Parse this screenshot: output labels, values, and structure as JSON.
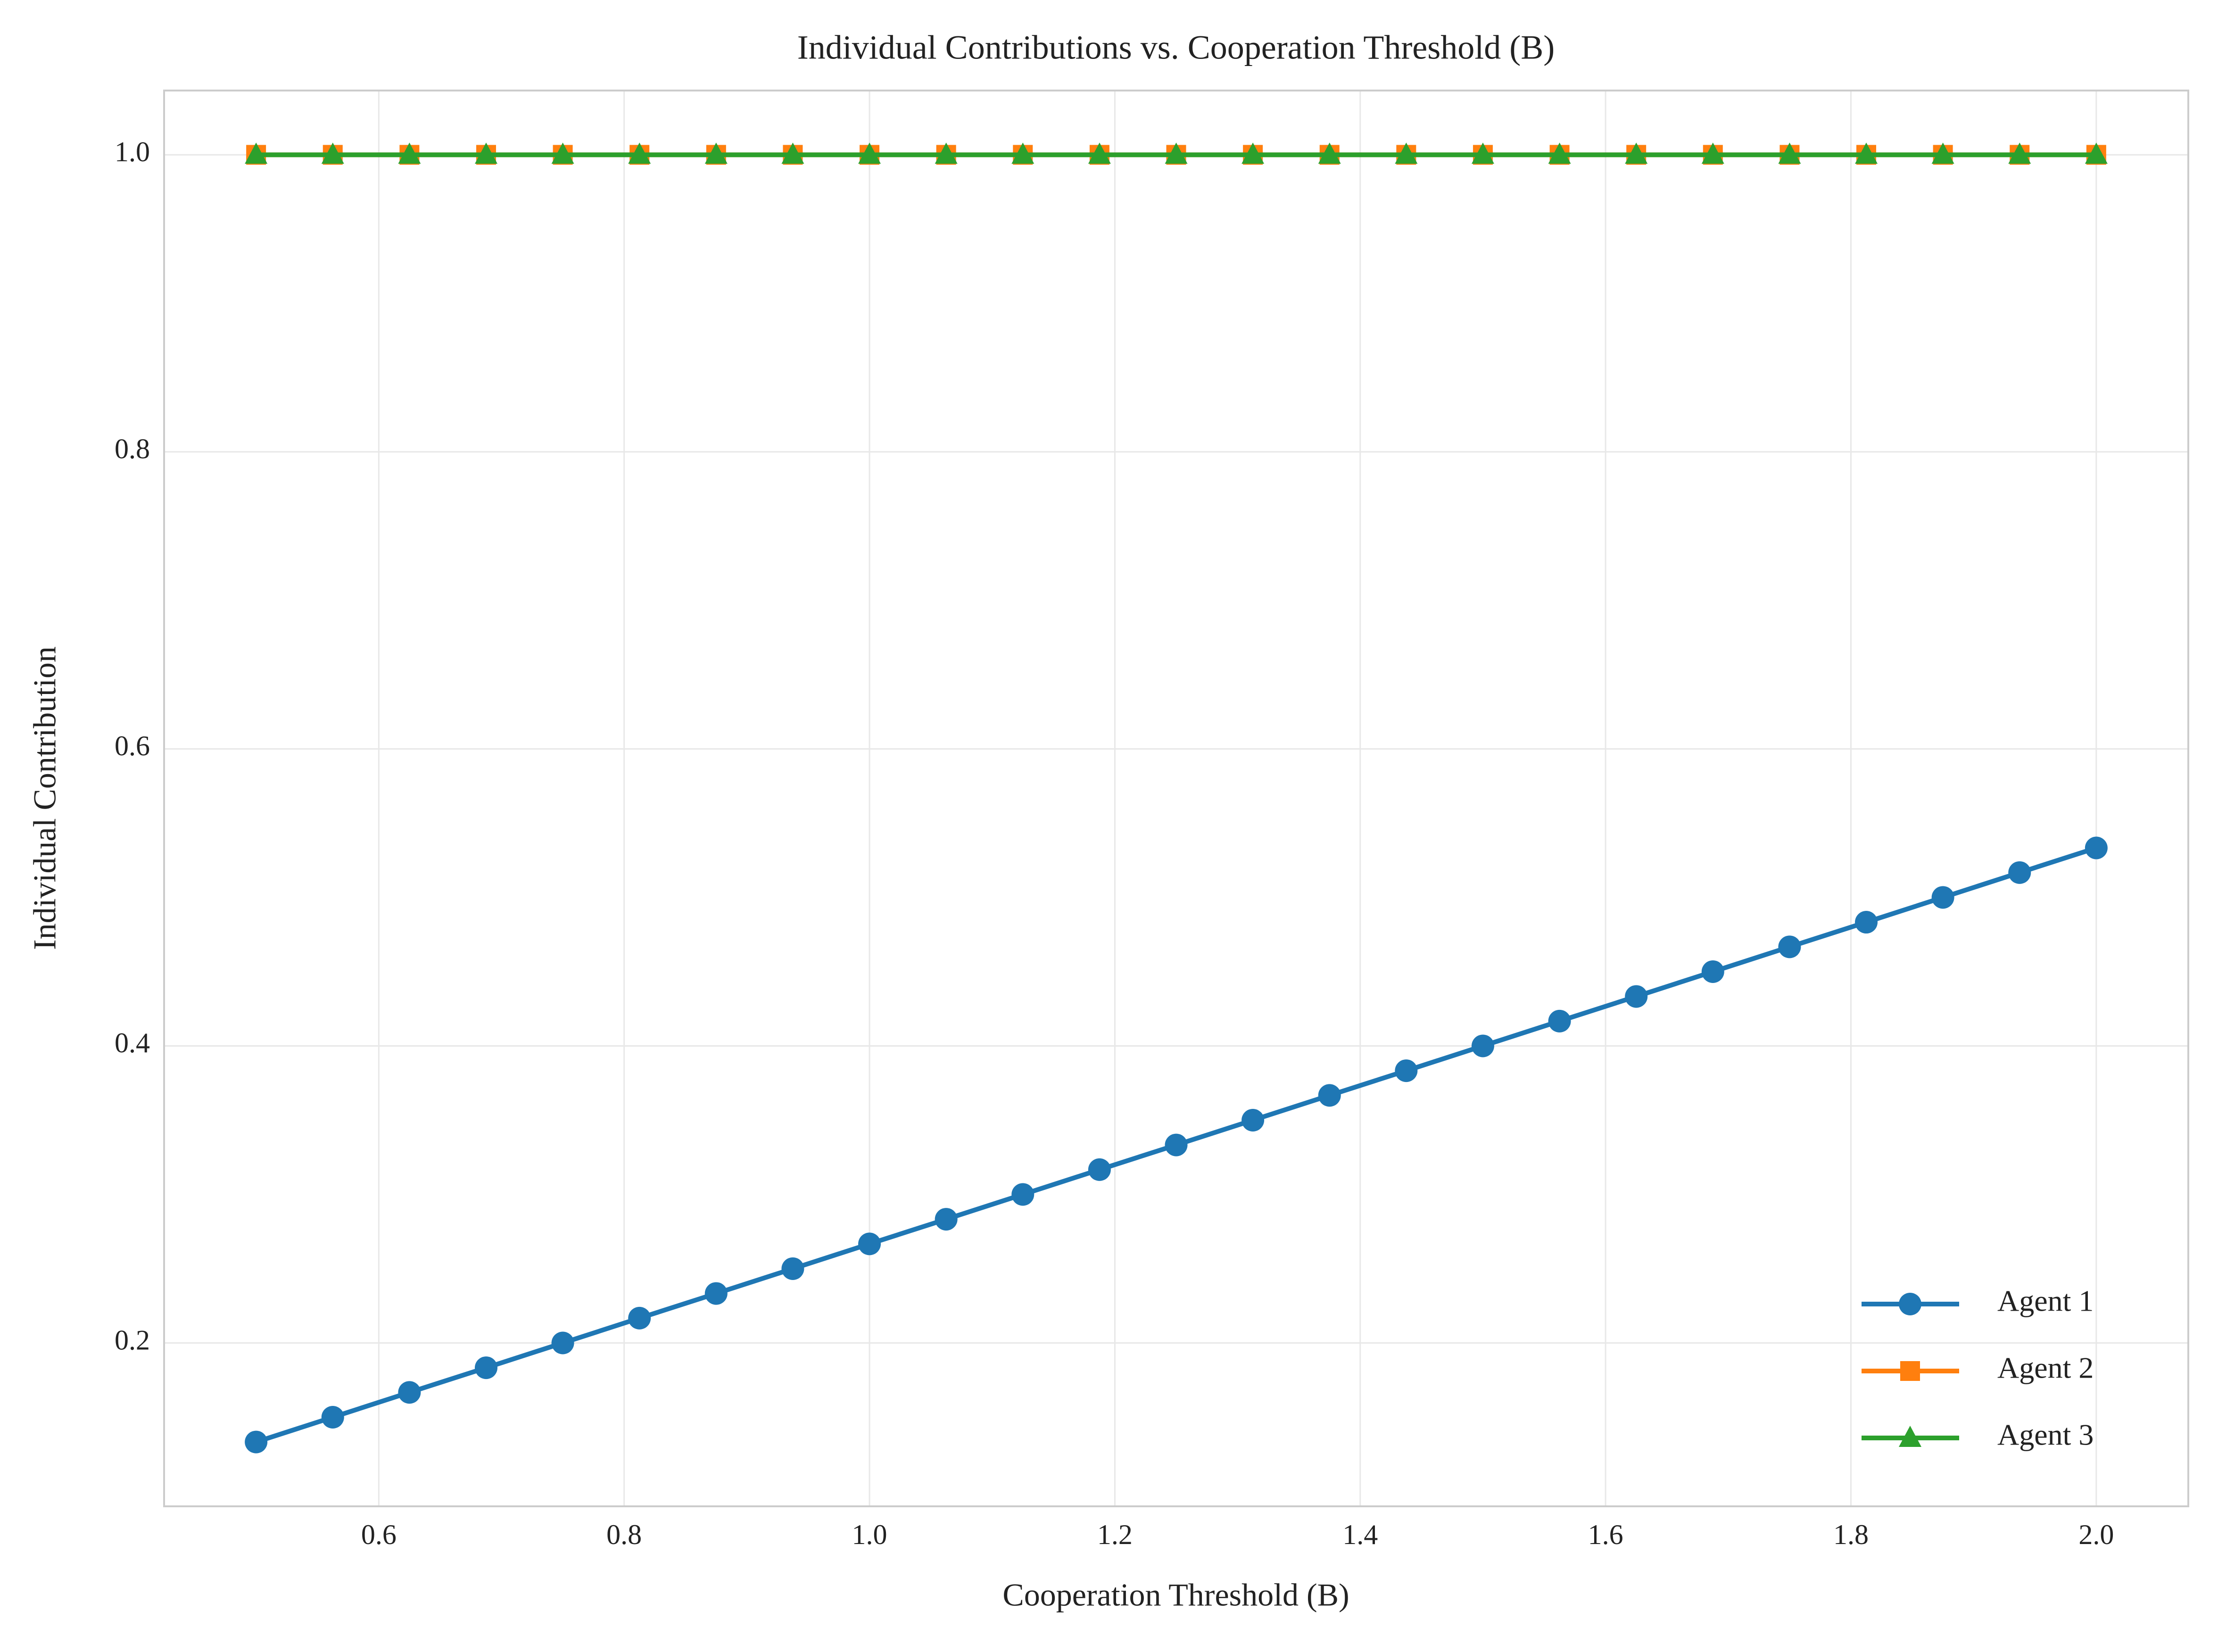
{
  "chart_data": {
    "type": "line",
    "title": "Individual Contributions vs. Cooperation Threshold (B)",
    "x_label": "Cooperation Threshold (B)",
    "y_label": "Individual Contribution",
    "x": [
      0.5,
      0.5625,
      0.625,
      0.6875,
      0.75,
      0.8125,
      0.875,
      0.9375,
      1.0,
      1.0625,
      1.125,
      1.1875,
      1.25,
      1.3125,
      1.375,
      1.4375,
      1.5,
      1.5625,
      1.625,
      1.6875,
      1.75,
      1.8125,
      1.875,
      1.9375,
      2.0
    ],
    "series": [
      {
        "name": "Agent 1",
        "color": "#1f77b4",
        "marker": "circle",
        "values": [
          0.1333,
          0.15,
          0.1667,
          0.1833,
          0.2,
          0.2167,
          0.2333,
          0.25,
          0.2667,
          0.2833,
          0.3,
          0.3167,
          0.3333,
          0.35,
          0.3667,
          0.3833,
          0.4,
          0.4167,
          0.4333,
          0.45,
          0.4667,
          0.4833,
          0.5,
          0.5167,
          0.5333
        ]
      },
      {
        "name": "Agent 2",
        "color": "#ff7f0e",
        "marker": "square",
        "values": [
          1,
          1,
          1,
          1,
          1,
          1,
          1,
          1,
          1,
          1,
          1,
          1,
          1,
          1,
          1,
          1,
          1,
          1,
          1,
          1,
          1,
          1,
          1,
          1,
          1
        ]
      },
      {
        "name": "Agent 3",
        "color": "#2ca02c",
        "marker": "triangle",
        "values": [
          1,
          1,
          1,
          1,
          1,
          1,
          1,
          1,
          1,
          1,
          1,
          1,
          1,
          1,
          1,
          1,
          1,
          1,
          1,
          1,
          1,
          1,
          1,
          1,
          1
        ]
      }
    ],
    "xlim": [
      0.425,
      2.075
    ],
    "xticks": [
      0.6,
      0.8,
      {
        "value": 1,
        "label": "1.0"
      },
      1.2,
      1.4,
      1.6,
      1.8,
      {
        "value": 2,
        "label": "2.0"
      }
    ],
    "ylim": [
      0.09,
      1.0433
    ],
    "yticks": [
      0.2,
      0.4,
      0.6,
      0.8,
      {
        "value": 1,
        "label": "1.0"
      }
    ],
    "grid": true,
    "legend": "lower right"
  }
}
